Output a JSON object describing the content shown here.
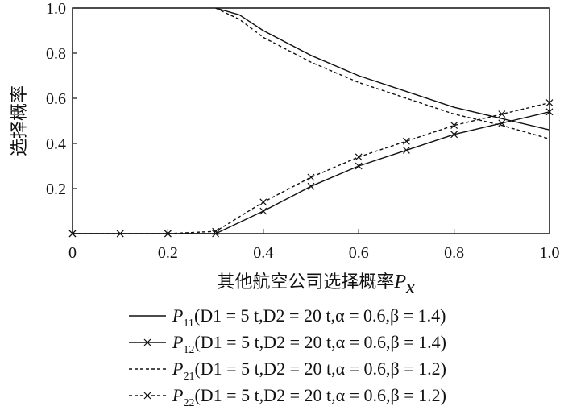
{
  "chart_data": {
    "type": "line",
    "ylabel": "选择概率",
    "xlabel": {
      "text": "其他航空公司选择概率",
      "var": "P",
      "sub": "x"
    },
    "xlim": [
      0,
      1.0
    ],
    "ylim": [
      0,
      1.0
    ],
    "x_ticks": [
      0,
      0.2,
      0.4,
      0.6,
      0.8,
      1.0
    ],
    "x_tick_labels": [
      "0",
      "0.2",
      "0.4",
      "0.6",
      "0.8",
      "1.0"
    ],
    "y_ticks": [
      0.2,
      0.4,
      0.6,
      0.8,
      1.0
    ],
    "y_tick_labels": [
      "0.2",
      "0.4",
      "0.6",
      "0.8",
      "1.0"
    ],
    "legend_position": "bottom",
    "series": [
      {
        "name": "P11(D1 = 5 t,D2 = 20 t,α = 0.6,β = 1.4)",
        "label_var": "P",
        "label_sub": "11",
        "label_params": "(D1 = 5 t,D2 = 20 t,α = 0.6,β = 1.4)",
        "style": "solid",
        "marker": "none",
        "x": [
          0.3,
          0.35,
          0.4,
          0.5,
          0.6,
          0.7,
          0.8,
          0.9,
          1.0
        ],
        "y": [
          1.0,
          0.97,
          0.9,
          0.79,
          0.7,
          0.63,
          0.56,
          0.51,
          0.46
        ]
      },
      {
        "name": "P12(D1 = 5 t,D2 = 20 t,α = 0.6,β = 1.4)",
        "label_var": "P",
        "label_sub": "12",
        "label_params": "(D1 = 5 t,D2 = 20 t,α = 0.6,β = 1.4)",
        "style": "solid",
        "marker": "x",
        "x": [
          0.0,
          0.1,
          0.2,
          0.3,
          0.4,
          0.5,
          0.6,
          0.7,
          0.8,
          0.9,
          1.0
        ],
        "y": [
          0.0,
          0.0,
          0.0,
          0.0,
          0.1,
          0.21,
          0.3,
          0.37,
          0.44,
          0.49,
          0.54
        ]
      },
      {
        "name": "P21(D1 = 5 t,D2 = 20 t,α = 0.6,β = 1.2)",
        "label_var": "P",
        "label_sub": "21",
        "label_params": "(D1 = 5 t,D2 = 20 t,α = 0.6,β = 1.2)",
        "style": "dashed",
        "marker": "none",
        "x": [
          0.3,
          0.35,
          0.4,
          0.5,
          0.6,
          0.7,
          0.8,
          0.9,
          1.0
        ],
        "y": [
          1.0,
          0.95,
          0.87,
          0.76,
          0.67,
          0.6,
          0.53,
          0.48,
          0.42
        ]
      },
      {
        "name": "P22(D1 = 5 t,D2 = 20 t,α = 0.6,β = 1.2)",
        "label_var": "P",
        "label_sub": "22",
        "label_params": "(D1 = 5 t,D2 = 20 t,α = 0.6,β = 1.2)",
        "style": "dashed",
        "marker": "x",
        "x": [
          0.0,
          0.1,
          0.2,
          0.3,
          0.4,
          0.5,
          0.6,
          0.7,
          0.8,
          0.9,
          1.0
        ],
        "y": [
          0.0,
          0.0,
          0.0,
          0.01,
          0.14,
          0.25,
          0.34,
          0.41,
          0.48,
          0.53,
          0.58
        ]
      }
    ]
  }
}
